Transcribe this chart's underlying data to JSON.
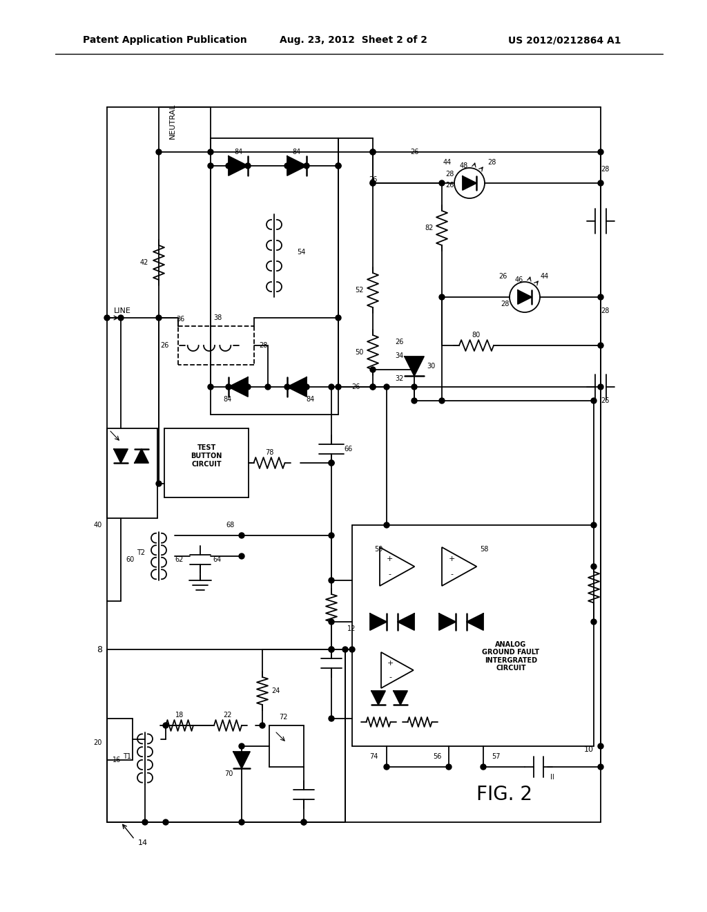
{
  "title_left": "Patent Application Publication",
  "title_mid": "Aug. 23, 2012  Sheet 2 of 2",
  "title_right": "US 2012/0212864 A1",
  "background_color": "#ffffff",
  "line_color": "#000000"
}
